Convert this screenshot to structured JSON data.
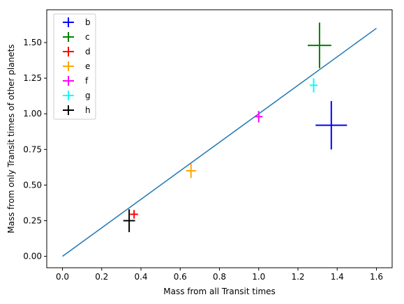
{
  "chart_data": {
    "type": "scatter",
    "title": "",
    "xlabel": "Mass from all Transit times",
    "ylabel": "Mass from only Transit times of other planets",
    "xlim": [
      -0.08,
      1.68
    ],
    "ylim": [
      -0.08,
      1.73
    ],
    "xticks": [
      0.0,
      0.2,
      0.4,
      0.6,
      0.8,
      1.0,
      1.2,
      1.4,
      1.6
    ],
    "xtick_labels": [
      "0.0",
      "0.2",
      "0.4",
      "0.6",
      "0.8",
      "1.0",
      "1.2",
      "1.4",
      "1.6"
    ],
    "yticks": [
      0.0,
      0.25,
      0.5,
      0.75,
      1.0,
      1.25,
      1.5
    ],
    "ytick_labels": [
      "0.00",
      "0.25",
      "0.50",
      "0.75",
      "1.00",
      "1.25",
      "1.50"
    ],
    "grid": false,
    "legend_position": "top-left",
    "reference_line": {
      "x": [
        0.0,
        1.6
      ],
      "y": [
        0.0,
        1.6
      ],
      "color": "#1f77b4"
    },
    "series": [
      {
        "name": "b",
        "color": "#0000ff",
        "x": 1.37,
        "y": 0.92,
        "xerr": 0.08,
        "yerr": 0.17
      },
      {
        "name": "c",
        "color": "#008000",
        "x": 1.31,
        "y": 1.48,
        "xerr": 0.06,
        "yerr": 0.16
      },
      {
        "name": "d",
        "color": "#ff0000",
        "x": 0.365,
        "y": 0.295,
        "xerr": 0.02,
        "yerr": 0.03
      },
      {
        "name": "e",
        "color": "#ffa500",
        "x": 0.655,
        "y": 0.6,
        "xerr": 0.025,
        "yerr": 0.05
      },
      {
        "name": "f",
        "color": "#ff00ff",
        "x": 1.0,
        "y": 0.98,
        "xerr": 0.02,
        "yerr": 0.04
      },
      {
        "name": "g",
        "color": "#00ffff",
        "x": 1.28,
        "y": 1.2,
        "xerr": 0.02,
        "yerr": 0.05
      },
      {
        "name": "h",
        "color": "#000000",
        "x": 0.34,
        "y": 0.25,
        "xerr": 0.03,
        "yerr": 0.08
      }
    ]
  }
}
